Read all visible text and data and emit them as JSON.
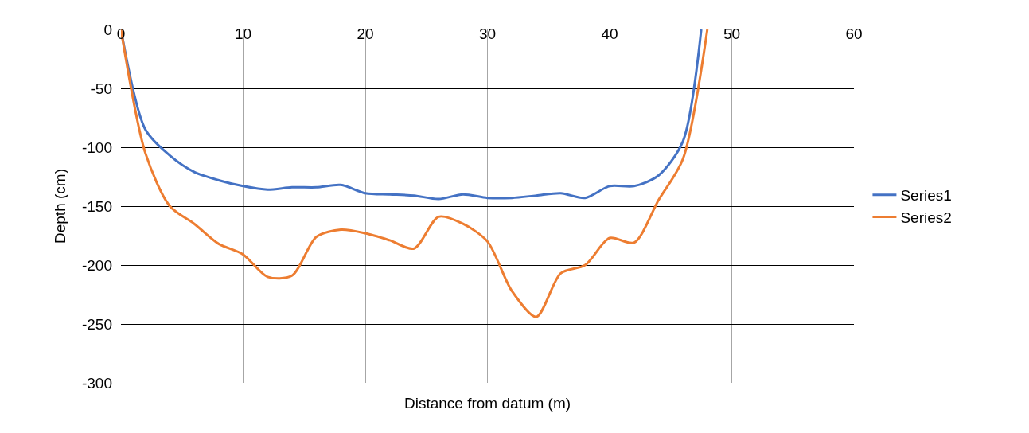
{
  "chart_data": {
    "type": "line",
    "xlabel": "Distance from datum (m)",
    "ylabel": "Depth (cm)",
    "xlim": [
      0,
      60
    ],
    "xticks": [
      0,
      10,
      20,
      30,
      40,
      50,
      60
    ],
    "ylim": [
      -300,
      0
    ],
    "yticks": [
      -300,
      -250,
      -200,
      -150,
      -100,
      -50,
      0
    ],
    "grid": true,
    "legend": "right",
    "marker": "none",
    "line_style": "solid",
    "series": [
      {
        "name": "Series1",
        "color": "#4472c4",
        "x": [
          0,
          2,
          4,
          6,
          8,
          10,
          12,
          14,
          16,
          18,
          20,
          22,
          24,
          26,
          28,
          30,
          32,
          34,
          36,
          38,
          40,
          42,
          44,
          46,
          47.5
        ],
        "values": [
          0,
          -85,
          -107,
          -121,
          -128,
          -133,
          -136,
          -134,
          -134,
          -132,
          -139,
          -140,
          -141,
          -144,
          -140,
          -143,
          -143,
          -141,
          -139,
          -143,
          -133,
          -133,
          -124,
          -95,
          0
        ]
      },
      {
        "name": "Series2",
        "color": "#ed7d31",
        "x": [
          0,
          2,
          4,
          6,
          8,
          10,
          12,
          14,
          16,
          18,
          20,
          22,
          24,
          26,
          28,
          30,
          32,
          34,
          36,
          38,
          40,
          42,
          44,
          46,
          48
        ],
        "values": [
          0,
          -105,
          -150,
          -165,
          -182,
          -191,
          -210,
          -209,
          -176,
          -170,
          -173,
          -179,
          -186,
          -159,
          -165,
          -180,
          -222,
          -244,
          -207,
          -200,
          -177,
          -181,
          -145,
          -110,
          0
        ]
      }
    ]
  }
}
